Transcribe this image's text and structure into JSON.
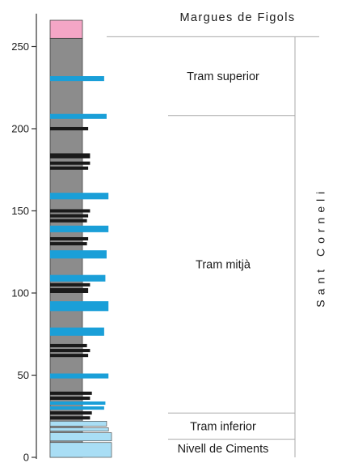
{
  "axis": {
    "min": 0,
    "max": 250,
    "ticks": [
      {
        "value": 0,
        "label": "0"
      },
      {
        "value": 50,
        "label": "50"
      },
      {
        "value": 100,
        "label": "100"
      },
      {
        "value": 150,
        "label": "150"
      },
      {
        "value": 200,
        "label": "200"
      },
      {
        "value": 250,
        "label": "250"
      }
    ]
  },
  "column": {
    "base_top": 255,
    "cap": {
      "bottom": 255,
      "top": 266,
      "color": "#f4a6c6"
    },
    "column_color": "#8c8c8c",
    "layers": [
      {
        "bottom": 0,
        "top": 9,
        "extent": 1.0,
        "color": "#a9def5"
      },
      {
        "bottom": 10,
        "top": 15,
        "extent": 1.0,
        "color": "#a9def5"
      },
      {
        "bottom": 16,
        "top": 18,
        "extent": 0.95,
        "color": "#a9def5"
      },
      {
        "bottom": 19,
        "top": 22,
        "extent": 0.92,
        "color": "#a9def5"
      },
      {
        "bottom": 23,
        "top": 25,
        "extent": 0.65,
        "color": "#1a1a1a"
      },
      {
        "bottom": 26,
        "top": 28,
        "extent": 0.68,
        "color": "#1a1a1a"
      },
      {
        "bottom": 29,
        "top": 31,
        "extent": 0.88,
        "color": "#1a9fd8"
      },
      {
        "bottom": 32,
        "top": 34,
        "extent": 0.9,
        "color": "#1a9fd8"
      },
      {
        "bottom": 35,
        "top": 37,
        "extent": 0.65,
        "color": "#1a1a1a"
      },
      {
        "bottom": 38,
        "top": 40,
        "extent": 0.68,
        "color": "#1a1a1a"
      },
      {
        "bottom": 48,
        "top": 51,
        "extent": 0.95,
        "color": "#1a9fd8"
      },
      {
        "bottom": 61,
        "top": 63,
        "extent": 0.62,
        "color": "#1a1a1a"
      },
      {
        "bottom": 64,
        "top": 66,
        "extent": 0.65,
        "color": "#1a1a1a"
      },
      {
        "bottom": 67,
        "top": 69,
        "extent": 0.6,
        "color": "#1a1a1a"
      },
      {
        "bottom": 74,
        "top": 79,
        "extent": 0.88,
        "color": "#1a9fd8"
      },
      {
        "bottom": 89,
        "top": 95,
        "extent": 0.95,
        "color": "#1a9fd8"
      },
      {
        "bottom": 100,
        "top": 103,
        "extent": 0.62,
        "color": "#1a1a1a"
      },
      {
        "bottom": 104,
        "top": 106,
        "extent": 0.65,
        "color": "#1a1a1a"
      },
      {
        "bottom": 107,
        "top": 111,
        "extent": 0.9,
        "color": "#1a9fd8"
      },
      {
        "bottom": 121,
        "top": 126,
        "extent": 0.92,
        "color": "#1a9fd8"
      },
      {
        "bottom": 129,
        "top": 131,
        "extent": 0.6,
        "color": "#1a1a1a"
      },
      {
        "bottom": 132,
        "top": 134,
        "extent": 0.62,
        "color": "#1a1a1a"
      },
      {
        "bottom": 137,
        "top": 141,
        "extent": 0.95,
        "color": "#1a9fd8"
      },
      {
        "bottom": 143,
        "top": 145,
        "extent": 0.6,
        "color": "#1a1a1a"
      },
      {
        "bottom": 146,
        "top": 148,
        "extent": 0.62,
        "color": "#1a1a1a"
      },
      {
        "bottom": 149,
        "top": 151,
        "extent": 0.65,
        "color": "#1a1a1a"
      },
      {
        "bottom": 157,
        "top": 161,
        "extent": 0.95,
        "color": "#1a9fd8"
      },
      {
        "bottom": 175,
        "top": 177,
        "extent": 0.62,
        "color": "#1a1a1a"
      },
      {
        "bottom": 178,
        "top": 180,
        "extent": 0.65,
        "color": "#1a1a1a"
      },
      {
        "bottom": 182,
        "top": 185,
        "extent": 0.65,
        "color": "#1a1a1a"
      },
      {
        "bottom": 199,
        "top": 201,
        "extent": 0.62,
        "color": "#1a1a1a"
      },
      {
        "bottom": 206,
        "top": 209,
        "extent": 0.92,
        "color": "#1a9fd8"
      },
      {
        "bottom": 229,
        "top": 232,
        "extent": 0.88,
        "color": "#1a9fd8"
      }
    ]
  },
  "units": {
    "top_label": "Margues de Figols",
    "formation": "Sant Corneli",
    "members": [
      {
        "label": "Nivell de Ciments",
        "bottom": 0,
        "top": 11
      },
      {
        "label": "Tram inferior",
        "bottom": 11,
        "top": 27
      },
      {
        "label": "Tram mitjà",
        "bottom": 27,
        "top": 208
      },
      {
        "label": "Tram superior",
        "bottom": 208,
        "top": 256
      }
    ]
  }
}
